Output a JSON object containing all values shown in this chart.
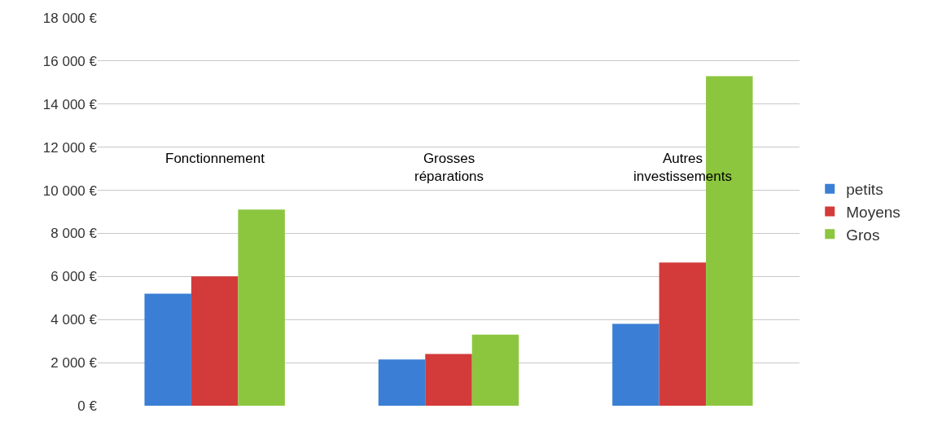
{
  "chart_data": {
    "type": "bar",
    "categories": [
      "Fonctionnement",
      "Grosses réparations",
      "Autres investissements"
    ],
    "series": [
      {
        "name": "petits",
        "color": "#3a7fd5",
        "values": [
          5200,
          2150,
          3800
        ]
      },
      {
        "name": "Moyens",
        "color": "#d33a3a",
        "values": [
          6000,
          2400,
          6650
        ]
      },
      {
        "name": "Gros",
        "color": "#8cc63f",
        "values": [
          9100,
          3300,
          15300
        ]
      }
    ],
    "ylim": [
      0,
      18000
    ],
    "yticks": [
      {
        "value": 0,
        "label": "0 €"
      },
      {
        "value": 2000,
        "label": "2 000 €"
      },
      {
        "value": 4000,
        "label": "4 000 €"
      },
      {
        "value": 6000,
        "label": "6 000 €"
      },
      {
        "value": 8000,
        "label": "8 000 €"
      },
      {
        "value": 10000,
        "label": "10 000 €"
      },
      {
        "value": 12000,
        "label": "12 000 €"
      },
      {
        "value": 14000,
        "label": "14 000 €"
      },
      {
        "value": 16000,
        "label": "16 000 €"
      },
      {
        "value": 18000,
        "label": "18 000 €"
      }
    ],
    "grid": "y",
    "legend": "right"
  }
}
